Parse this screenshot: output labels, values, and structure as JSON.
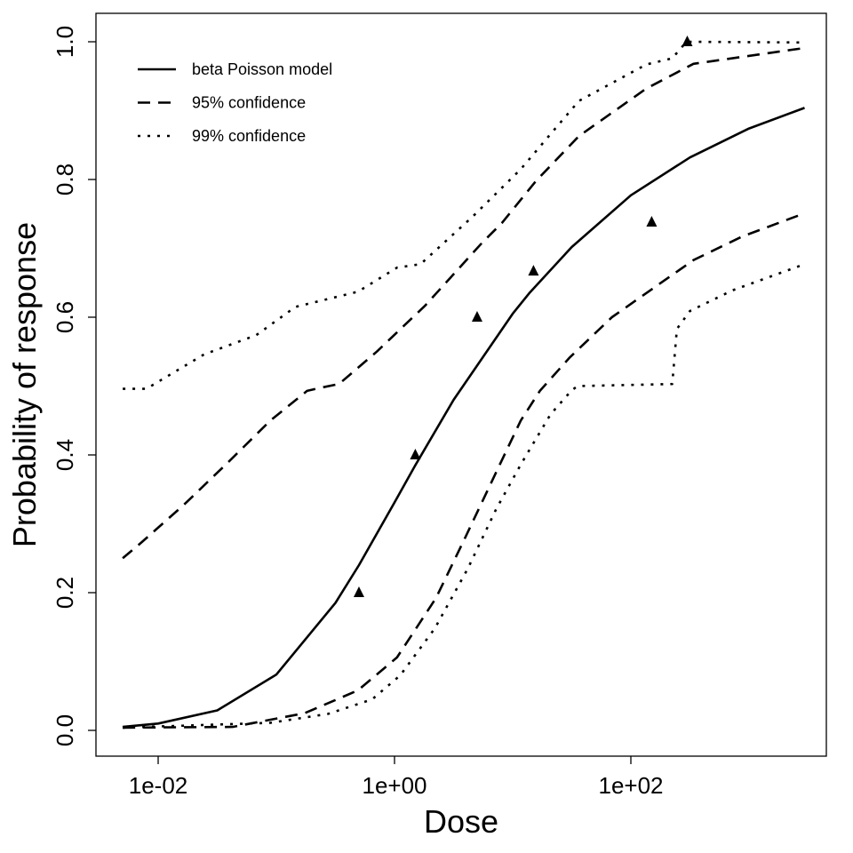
{
  "chart_data": {
    "type": "line",
    "xlabel": "Dose",
    "ylabel": "Probability of response",
    "x_scale": "log",
    "xlim": [
      0.005,
      2950
    ],
    "ylim": [
      0,
      1
    ],
    "x_ticks": [
      {
        "value": 0.01,
        "label": "1e-02"
      },
      {
        "value": 1,
        "label": "1e+00"
      },
      {
        "value": 100,
        "label": "1e+02"
      }
    ],
    "y_ticks": [
      {
        "value": 0,
        "label": "0.0"
      },
      {
        "value": 0.2,
        "label": "0.2"
      },
      {
        "value": 0.4,
        "label": "0.4"
      },
      {
        "value": 0.6,
        "label": "0.6"
      },
      {
        "value": 0.8,
        "label": "0.8"
      },
      {
        "value": 1.0,
        "label": "1.0"
      }
    ],
    "grid": false,
    "legend_position": "top-left",
    "color": "#000000",
    "series": [
      {
        "name": "beta Poisson model",
        "style": "solid",
        "x": [
          0.005,
          0.01,
          0.0316,
          0.1,
          0.316,
          0.5,
          1,
          1.5,
          3.16,
          10,
          14,
          31.6,
          100,
          316,
          1000,
          2950
        ],
        "y": [
          0.005,
          0.01,
          0.029,
          0.081,
          0.185,
          0.24,
          0.331,
          0.385,
          0.48,
          0.605,
          0.636,
          0.702,
          0.777,
          0.832,
          0.874,
          0.904
        ]
      },
      {
        "name": "95% confidence",
        "style": "dashed",
        "bound": "upper",
        "x": [
          0.00501,
          0.00724,
          0.0166,
          0.0389,
          0.0891,
          0.182,
          0.229,
          0.339,
          0.708,
          1.82,
          5.5,
          8.13,
          15.8,
          36.3,
          135,
          339,
          2950
        ],
        "y": [
          0.25,
          0.273,
          0.328,
          0.389,
          0.45,
          0.493,
          0.497,
          0.503,
          0.55,
          0.617,
          0.708,
          0.737,
          0.798,
          0.863,
          0.932,
          0.968,
          0.991
        ]
      },
      {
        "name": "95% confidence",
        "style": "dashed",
        "bound": "lower",
        "x": [
          0.00501,
          0.0427,
          0.174,
          0.49,
          1.05,
          2.24,
          3.89,
          6.76,
          11.7,
          17.0,
          30.2,
          69.2,
          135,
          339,
          871,
          2950
        ],
        "y": [
          0.004,
          0.005,
          0.025,
          0.058,
          0.106,
          0.192,
          0.277,
          0.364,
          0.45,
          0.493,
          0.541,
          0.6,
          0.635,
          0.683,
          0.717,
          0.751
        ]
      },
      {
        "name": "99% confidence",
        "style": "dotted",
        "bound": "upper",
        "x": [
          0.00501,
          0.00794,
          0.0245,
          0.0676,
          0.145,
          0.49,
          1.05,
          1.66,
          4.57,
          11.7,
          20.9,
          36.3,
          135,
          224,
          295,
          2950
        ],
        "y": [
          0.496,
          0.496,
          0.546,
          0.574,
          0.615,
          0.637,
          0.672,
          0.677,
          0.746,
          0.815,
          0.866,
          0.914,
          0.967,
          0.976,
          1.0,
          0.999
        ]
      },
      {
        "name": "99% confidence",
        "style": "dotted",
        "bound": "lower",
        "x": [
          0.00501,
          0.0891,
          0.275,
          0.646,
          1.12,
          2.19,
          4.17,
          7.24,
          11.7,
          20.9,
          31.6,
          35.5,
          224,
          245,
          316,
          724,
          2950
        ],
        "y": [
          0.004,
          0.011,
          0.024,
          0.045,
          0.08,
          0.148,
          0.235,
          0.321,
          0.386,
          0.459,
          0.494,
          0.5,
          0.503,
          0.583,
          0.609,
          0.639,
          0.677
        ]
      }
    ],
    "observed_points": {
      "marker": "triangle",
      "x": [
        0.5,
        1.5,
        5,
        15,
        150,
        300
      ],
      "y": [
        0.2,
        0.4,
        0.6,
        0.667,
        0.738,
        1.0
      ]
    },
    "legend": [
      {
        "label": "beta Poisson model",
        "style": "solid"
      },
      {
        "label": "95% confidence",
        "style": "dashed"
      },
      {
        "label": "99% confidence",
        "style": "dotted"
      }
    ]
  }
}
